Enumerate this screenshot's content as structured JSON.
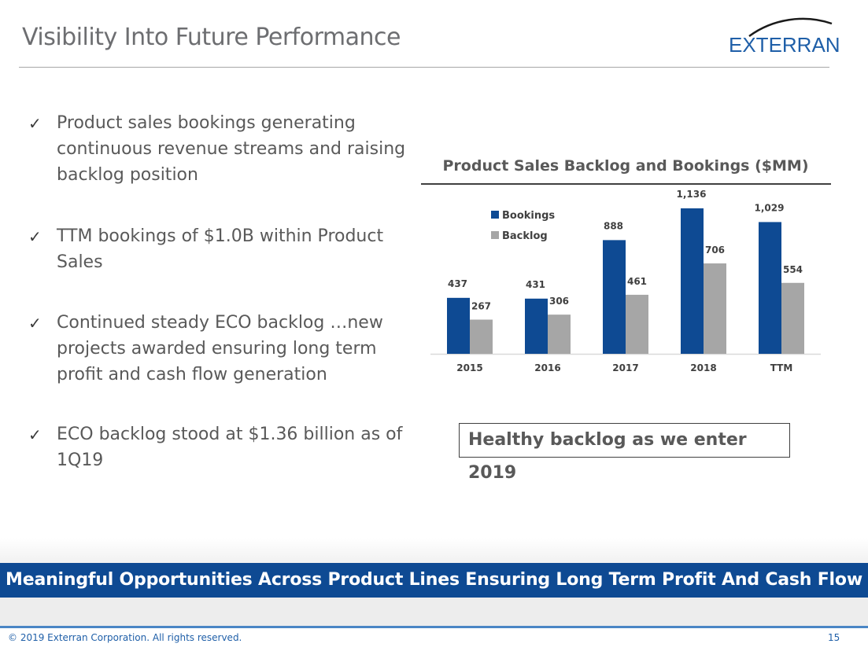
{
  "slide": {
    "title": "Visibility Into Future Performance",
    "logo_text": "EXTERRAN",
    "bullets": [
      "Product sales bookings generating continuous revenue streams and raising backlog position",
      "TTM bookings of $1.0B within Product Sales",
      "Continued steady ECO backlog …new projects awarded ensuring long term profit and cash flow generation",
      "ECO backlog stood at $1.36 billion as of 1Q19"
    ],
    "bullet_marker": "✓",
    "callout": "Healthy backlog as we enter 2019",
    "banner": "Meaningful Opportunities Across Product Lines Ensuring Long Term Profit And Cash Flow",
    "copyright": "© 2019 Exterran Corporation. All rights reserved.",
    "page_number": "15"
  },
  "colors": {
    "bookings": "#0e4a93",
    "backlog": "#a6a6a6",
    "banner": "#0e4a93",
    "brand": "#1f5fa8"
  },
  "chart_data": {
    "type": "bar",
    "title": "Product Sales Backlog and Bookings ($MM)",
    "categories": [
      "2015",
      "2016",
      "2017",
      "2018",
      "TTM"
    ],
    "series": [
      {
        "name": "Bookings",
        "values": [
          437,
          431,
          888,
          1136,
          1029
        ],
        "labels": [
          "437",
          "431",
          "888",
          "1,136",
          "1,029"
        ]
      },
      {
        "name": "Backlog",
        "values": [
          267,
          306,
          461,
          706,
          554
        ],
        "labels": [
          "267",
          "306",
          "461",
          "706",
          "554"
        ]
      }
    ],
    "ylim": [
      0,
      1136
    ],
    "grid": false,
    "legend": "top-left"
  }
}
